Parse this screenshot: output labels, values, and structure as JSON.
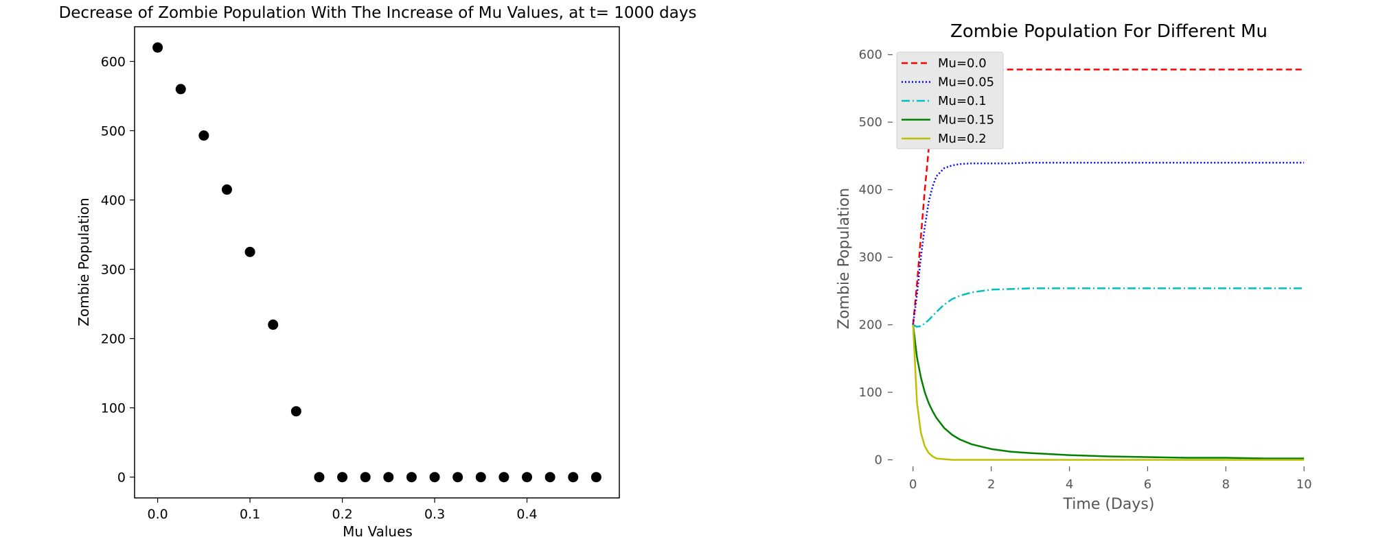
{
  "chart_data": [
    {
      "type": "scatter",
      "title": "Decrease of Zombie Population With The Increase of Mu Values, at t= 1000 days",
      "xlabel": "Mu Values",
      "ylabel": "Zombie Population",
      "xlim": [
        -0.025,
        0.5
      ],
      "ylim": [
        -30,
        650
      ],
      "xticks": [
        0.0,
        0.1,
        0.2,
        0.3,
        0.4
      ],
      "xtick_labels": [
        "0.0",
        "0.1",
        "0.2",
        "0.3",
        "0.4"
      ],
      "yticks": [
        0,
        100,
        200,
        300,
        400,
        500,
        600
      ],
      "ytick_labels": [
        "0",
        "100",
        "200",
        "300",
        "400",
        "500",
        "600"
      ],
      "marker_color": "#000000",
      "grid": false,
      "x": [
        0.0,
        0.025,
        0.05,
        0.075,
        0.1,
        0.125,
        0.15,
        0.175,
        0.2,
        0.225,
        0.25,
        0.275,
        0.3,
        0.325,
        0.35,
        0.375,
        0.4,
        0.425,
        0.45,
        0.475
      ],
      "y": [
        620,
        560,
        493,
        415,
        325,
        220,
        95,
        0,
        0,
        0,
        0,
        0,
        0,
        0,
        0,
        0,
        0,
        0,
        0,
        0
      ]
    },
    {
      "type": "line",
      "title": "Zombie Population For Different Mu",
      "xlabel": "Time (Days)",
      "ylabel": "Zombie Population",
      "xlim": [
        -0.4,
        10.4
      ],
      "ylim": [
        -30,
        620
      ],
      "xticks": [
        0,
        2,
        4,
        6,
        8,
        10
      ],
      "xtick_labels": [
        "0",
        "2",
        "4",
        "6",
        "8",
        "10"
      ],
      "yticks": [
        0,
        100,
        200,
        300,
        400,
        500,
        600
      ],
      "ytick_labels": [
        "0",
        "100",
        "200",
        "300",
        "400",
        "500",
        "600"
      ],
      "grid": false,
      "legend_position": "top-left",
      "x": [
        0,
        0.1,
        0.2,
        0.3,
        0.4,
        0.5,
        0.6,
        0.8,
        1.0,
        1.2,
        1.5,
        2.0,
        2.5,
        3,
        4,
        5,
        6,
        7,
        8,
        9,
        10
      ],
      "series": [
        {
          "name": "Mu=0.0",
          "color": "#ff0000",
          "dash": "9,5",
          "values": [
            200,
            260,
            330,
            400,
            460,
            510,
            545,
            570,
            577,
            578,
            578,
            578,
            578,
            578,
            578,
            578,
            578,
            578,
            578,
            578,
            578
          ]
        },
        {
          "name": "Mu=0.05",
          "color": "#0000ff",
          "dash": "2,3",
          "values": [
            200,
            245,
            300,
            345,
            382,
            405,
            420,
            432,
            436,
            438,
            439,
            439,
            439,
            440,
            440,
            440,
            440,
            440,
            440,
            440,
            440
          ]
        },
        {
          "name": "Mu=0.1",
          "color": "#00bfbf",
          "dash": "12,4,2,4",
          "values": [
            200,
            197,
            198,
            202,
            207,
            213,
            219,
            230,
            238,
            243,
            248,
            252,
            253,
            254,
            254,
            254,
            254,
            254,
            254,
            254,
            254
          ]
        },
        {
          "name": "Mu=0.15",
          "color": "#008000",
          "dash": "",
          "values": [
            200,
            152,
            122,
            100,
            84,
            72,
            62,
            47,
            37,
            30,
            23,
            16,
            12,
            10,
            7,
            5,
            4,
            3,
            3,
            2,
            2
          ]
        },
        {
          "name": "Mu=0.2",
          "color": "#bfbf00",
          "dash": "",
          "values": [
            200,
            85,
            40,
            20,
            10,
            5,
            2,
            1,
            0,
            0,
            0,
            0,
            0,
            0,
            0,
            0,
            0,
            0,
            0,
            0,
            0
          ]
        }
      ]
    }
  ]
}
